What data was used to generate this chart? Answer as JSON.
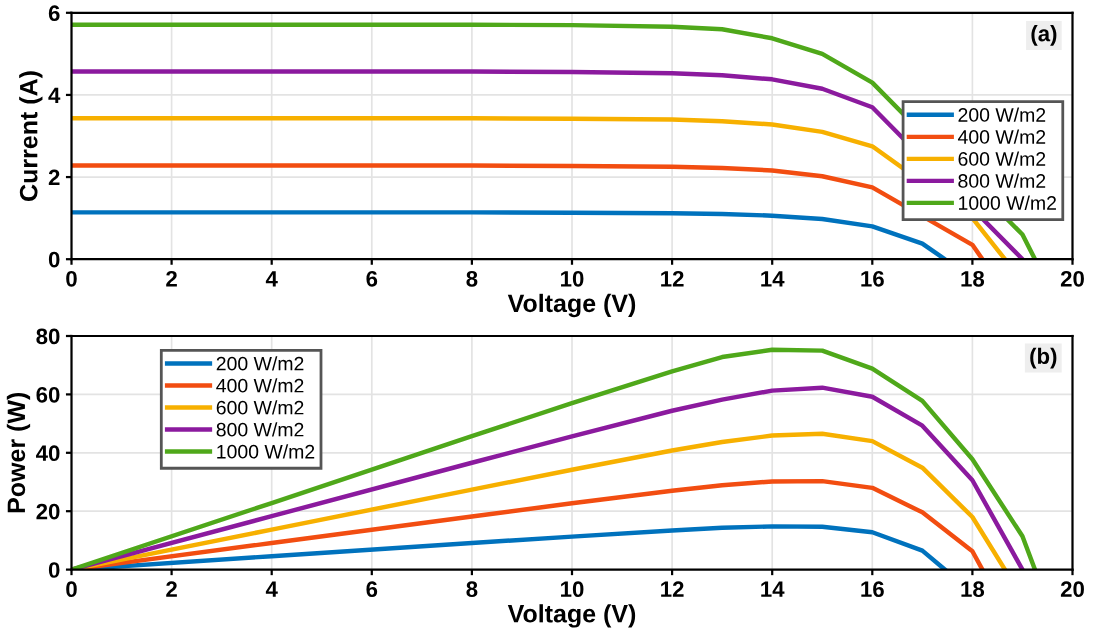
{
  "chart_data": [
    {
      "type": "line",
      "xlabel": "Voltage (V)",
      "ylabel": "Current (A)",
      "annotations": [
        "(a)"
      ],
      "xlim": [
        0,
        20
      ],
      "ylim": [
        0,
        6
      ],
      "xticks": [
        0,
        2,
        4,
        6,
        8,
        10,
        12,
        14,
        16,
        18,
        20
      ],
      "yticks": [
        0,
        2,
        4,
        6
      ],
      "grid": true,
      "legend": "right",
      "series": [
        {
          "name": "200 W/m2",
          "color": "#0072bd",
          "x": [
            0,
            4,
            8,
            10,
            12,
            13,
            14,
            15,
            16,
            17,
            17.45
          ],
          "values": [
            1.14,
            1.14,
            1.14,
            1.13,
            1.12,
            1.1,
            1.06,
            0.98,
            0.8,
            0.38,
            0
          ]
        },
        {
          "name": "400 W/m2",
          "color": "#f24d11",
          "x": [
            0,
            4,
            8,
            10,
            12,
            13,
            14,
            15,
            16,
            18,
            18.2
          ],
          "values": [
            2.28,
            2.28,
            2.28,
            2.27,
            2.25,
            2.22,
            2.16,
            2.02,
            1.75,
            0.35,
            0
          ]
        },
        {
          "name": "600 W/m2",
          "color": "#f7b000",
          "x": [
            0,
            4,
            8,
            10,
            12,
            13,
            14,
            15,
            16,
            18,
            18.65
          ],
          "values": [
            3.43,
            3.43,
            3.43,
            3.42,
            3.4,
            3.36,
            3.28,
            3.1,
            2.75,
            1.0,
            0
          ]
        },
        {
          "name": "800 W/m2",
          "color": "#8b1a9e",
          "x": [
            0,
            4,
            8,
            10,
            12,
            13,
            14,
            15,
            16,
            19
          ],
          "values": [
            4.57,
            4.57,
            4.57,
            4.56,
            4.53,
            4.48,
            4.38,
            4.15,
            3.7,
            0
          ]
        },
        {
          "name": "1000 W/m2",
          "color": "#4fa81a",
          "x": [
            0,
            4,
            8,
            10,
            12,
            13,
            14,
            15,
            16,
            19,
            19.25
          ],
          "values": [
            5.71,
            5.71,
            5.71,
            5.7,
            5.66,
            5.6,
            5.38,
            5.0,
            4.3,
            0.6,
            0
          ]
        }
      ]
    },
    {
      "type": "line",
      "xlabel": "Voltage (V)",
      "ylabel": "Power (W)",
      "annotations": [
        "(b)"
      ],
      "xlim": [
        0,
        20
      ],
      "ylim": [
        0,
        80
      ],
      "xticks": [
        0,
        2,
        4,
        6,
        8,
        10,
        12,
        14,
        16,
        18,
        20
      ],
      "yticks": [
        0,
        20,
        40,
        60,
        80
      ],
      "grid": true,
      "legend": "top left",
      "series": [
        {
          "name": "200 W/m2",
          "color": "#0072bd",
          "x": [
            0,
            4,
            8,
            10,
            12,
            13,
            14,
            15,
            16,
            17,
            17.45
          ],
          "values": [
            0,
            4.6,
            9.1,
            11.3,
            13.4,
            14.3,
            14.8,
            14.7,
            12.8,
            6.5,
            0
          ]
        },
        {
          "name": "400 W/m2",
          "color": "#f24d11",
          "x": [
            0,
            4,
            8,
            10,
            12,
            13,
            14,
            15,
            16,
            17,
            18,
            18.2
          ],
          "values": [
            0,
            9.1,
            18.2,
            22.7,
            27,
            28.9,
            30.2,
            30.3,
            28,
            19.6,
            6.3,
            0
          ]
        },
        {
          "name": "600 W/m2",
          "color": "#f7b000",
          "x": [
            0,
            4,
            8,
            10,
            12,
            13,
            14,
            15,
            16,
            17,
            18,
            18.65
          ],
          "values": [
            0,
            13.7,
            27.4,
            34.2,
            40.8,
            43.7,
            45.9,
            46.5,
            44,
            34.9,
            18,
            0
          ]
        },
        {
          "name": "800 W/m2",
          "color": "#8b1a9e",
          "x": [
            0,
            4,
            8,
            10,
            12,
            13,
            14,
            15,
            16,
            17,
            18,
            19
          ],
          "values": [
            0,
            18.3,
            36.6,
            45.6,
            54.4,
            58.2,
            61.3,
            62.3,
            59.2,
            49.3,
            30.6,
            0
          ]
        },
        {
          "name": "1000 W/m2",
          "color": "#4fa81a",
          "x": [
            0,
            4,
            8,
            10,
            12,
            13,
            14,
            15,
            16,
            17,
            18,
            19,
            19.25
          ],
          "values": [
            0,
            22.8,
            45.7,
            57,
            67.9,
            72.8,
            75.3,
            75,
            68.8,
            57.8,
            37.8,
            11.4,
            0
          ]
        }
      ]
    }
  ]
}
